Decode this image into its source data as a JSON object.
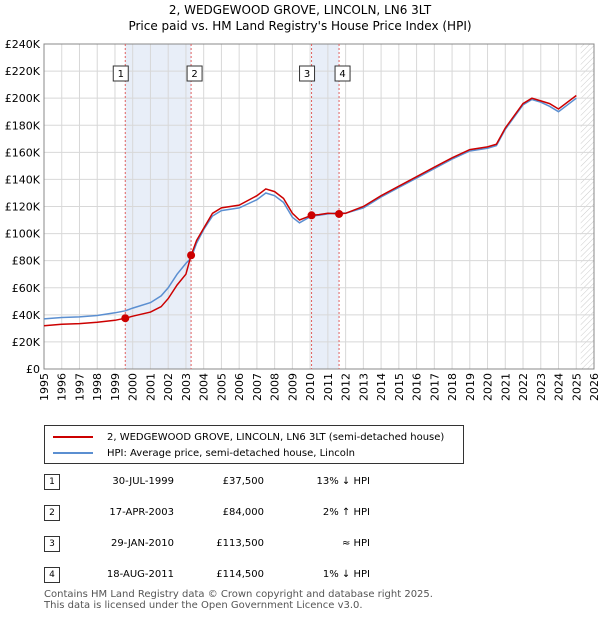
{
  "title_line1": "2, WEDGEWOOD GROVE, LINCOLN, LN6 3LT",
  "title_line2": "Price paid vs. HM Land Registry's House Price Index (HPI)",
  "chart_data": {
    "type": "line",
    "xlim": [
      1995,
      2026
    ],
    "ylim": [
      0,
      240000
    ],
    "y_ticks": [
      0,
      20000,
      40000,
      60000,
      80000,
      100000,
      120000,
      140000,
      160000,
      180000,
      200000,
      220000,
      240000
    ],
    "y_tick_labels": [
      "£0",
      "£20K",
      "£40K",
      "£60K",
      "£80K",
      "£100K",
      "£120K",
      "£140K",
      "£160K",
      "£180K",
      "£200K",
      "£220K",
      "£240K"
    ],
    "x_ticks": [
      1995,
      1996,
      1997,
      1998,
      1999,
      2000,
      2001,
      2002,
      2003,
      2004,
      2005,
      2006,
      2007,
      2008,
      2009,
      2010,
      2011,
      2012,
      2013,
      2014,
      2015,
      2016,
      2017,
      2018,
      2019,
      2020,
      2021,
      2022,
      2023,
      2024,
      2025,
      2026
    ],
    "grid": true,
    "series": [
      {
        "name": "2, WEDGEWOOD GROVE, LINCOLN, LN6 3LT (semi-detached house)",
        "color": "#cc0000",
        "x": [
          1995,
          1996,
          1997,
          1998,
          1999.0,
          1999.58,
          2000,
          2001,
          2001.6,
          2002,
          2002.5,
          2003.0,
          2003.29,
          2003.6,
          2004,
          2004.5,
          2005,
          2006,
          2007,
          2007.5,
          2008,
          2008.5,
          2009,
          2009.4,
          2010.08,
          2010.5,
          2011,
          2011.63,
          2012,
          2013,
          2014,
          2015,
          2016,
          2017,
          2018,
          2019,
          2020,
          2020.5,
          2021,
          2022,
          2022.5,
          2023,
          2023.5,
          2024,
          2025
        ],
        "values": [
          32000,
          33000,
          33500,
          34500,
          36000,
          37500,
          39000,
          42000,
          46000,
          52000,
          62000,
          70000,
          84000,
          95000,
          104000,
          115000,
          119000,
          121000,
          128000,
          133000,
          131000,
          126000,
          115000,
          110000,
          113500,
          114000,
          115000,
          114500,
          115000,
          120000,
          128000,
          135000,
          142000,
          149000,
          156000,
          162000,
          164000,
          166000,
          178000,
          196000,
          200000,
          198000,
          196000,
          192000,
          202000
        ]
      },
      {
        "name": "HPI: Average price, semi-detached house, Lincoln",
        "color": "#5b8fd1",
        "x": [
          1995,
          1996,
          1997,
          1998,
          1999.0,
          1999.58,
          2000,
          2001,
          2001.6,
          2002,
          2002.5,
          2003.0,
          2003.29,
          2003.6,
          2004,
          2004.5,
          2005,
          2006,
          2007,
          2007.5,
          2008,
          2008.5,
          2009,
          2009.4,
          2010.08,
          2010.5,
          2011,
          2011.63,
          2012,
          2013,
          2014,
          2015,
          2016,
          2017,
          2018,
          2019,
          2020,
          2020.5,
          2021,
          2022,
          2022.5,
          2023,
          2023.5,
          2024,
          2025
        ],
        "values": [
          37000,
          38000,
          38500,
          39500,
          41500,
          43000,
          45000,
          49000,
          54000,
          60000,
          70000,
          78000,
          82000,
          93000,
          103000,
          113000,
          117000,
          119000,
          125000,
          130000,
          128000,
          123000,
          112000,
          108000,
          113000,
          113500,
          114500,
          115500,
          115000,
          119000,
          127000,
          134000,
          141000,
          148000,
          155000,
          161000,
          163000,
          165000,
          177000,
          195000,
          199000,
          197000,
          194000,
          190000,
          200000
        ]
      }
    ],
    "sale_markers": [
      {
        "label": "1",
        "x": 1999.58,
        "value": 37500
      },
      {
        "label": "2",
        "x": 2003.29,
        "value": 84000
      },
      {
        "label": "3",
        "x": 2010.08,
        "value": 113500
      },
      {
        "label": "4",
        "x": 2011.63,
        "value": 114500
      }
    ],
    "shaded_spans": [
      [
        1999.58,
        2003.29
      ],
      [
        2010.08,
        2011.63
      ]
    ],
    "forecast_start": 2025.25
  },
  "legend": [
    {
      "label": "2, WEDGEWOOD GROVE, LINCOLN, LN6 3LT (semi-detached house)",
      "color": "#cc0000"
    },
    {
      "label": "HPI: Average price, semi-detached house, Lincoln",
      "color": "#5b8fd1"
    }
  ],
  "sales": [
    {
      "num": "1",
      "date": "30-JUL-1999",
      "price": "£37,500",
      "hpi": "13% ↓ HPI"
    },
    {
      "num": "2",
      "date": "17-APR-2003",
      "price": "£84,000",
      "hpi": "2% ↑ HPI"
    },
    {
      "num": "3",
      "date": "29-JAN-2010",
      "price": "£113,500",
      "hpi": "≈ HPI"
    },
    {
      "num": "4",
      "date": "18-AUG-2011",
      "price": "£114,500",
      "hpi": "1% ↓ HPI"
    }
  ],
  "footer": {
    "line1": "Contains HM Land Registry data © Crown copyright and database right 2025.",
    "line2": "This data is licensed under the Open Government Licence v3.0."
  }
}
